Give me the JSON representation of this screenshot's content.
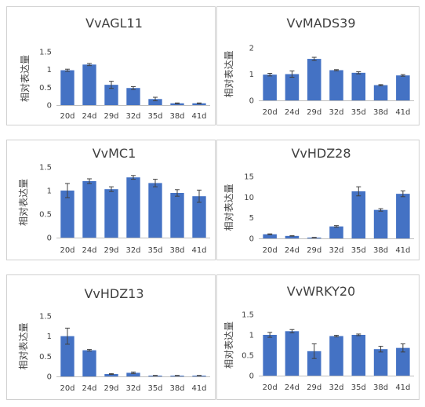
{
  "chart_data": [
    {
      "type": "bar",
      "title": "VvAGL11",
      "ylabel": "相对表达量",
      "categories": [
        "20d",
        "24d",
        "29d",
        "32d",
        "35d",
        "38d",
        "41d"
      ],
      "values": [
        0.98,
        1.14,
        0.57,
        0.48,
        0.17,
        0.05,
        0.05
      ],
      "errors": [
        0.03,
        0.03,
        0.1,
        0.04,
        0.05,
        0.01,
        0.01
      ],
      "ylim": [
        0,
        1.5
      ],
      "yticks": [
        0,
        0.5,
        1,
        1.5
      ],
      "ytick_labels": [
        "0",
        "0.5",
        "1",
        "1.5"
      ],
      "bar_color": "#4472c4",
      "grid": false
    },
    {
      "type": "bar",
      "title": "VvMADS39",
      "ylabel": "相对表达量",
      "categories": [
        "20d",
        "24d",
        "29d",
        "32d",
        "35d",
        "38d",
        "41d"
      ],
      "values": [
        0.98,
        1.0,
        1.58,
        1.15,
        1.05,
        0.58,
        0.95
      ],
      "errors": [
        0.05,
        0.12,
        0.06,
        0.02,
        0.04,
        0.02,
        0.03
      ],
      "ylim": [
        0,
        2
      ],
      "yticks": [
        0,
        1,
        2
      ],
      "ytick_labels": [
        "0",
        "1",
        "2"
      ],
      "bar_color": "#4472c4",
      "grid": false
    },
    {
      "type": "bar",
      "title": "VvMC1",
      "ylabel": "相对表达量",
      "categories": [
        "20d",
        "24d",
        "29d",
        "32d",
        "35d",
        "38d",
        "41d"
      ],
      "values": [
        1.0,
        1.2,
        1.03,
        1.28,
        1.16,
        0.95,
        0.88
      ],
      "errors": [
        0.15,
        0.05,
        0.05,
        0.04,
        0.08,
        0.07,
        0.13
      ],
      "ylim": [
        0,
        1.5
      ],
      "yticks": [
        0,
        0.5,
        1,
        1.5
      ],
      "ytick_labels": [
        "0",
        "0.5",
        "1",
        "1.5"
      ],
      "bar_color": "#4472c4",
      "grid": false
    },
    {
      "type": "bar",
      "title": "VvHDZ28",
      "ylabel": "相对表达量",
      "categories": [
        "20d",
        "24d",
        "29d",
        "32d",
        "35d",
        "38d",
        "41d"
      ],
      "values": [
        1.0,
        0.6,
        0.2,
        2.9,
        11.4,
        6.9,
        10.8
      ],
      "errors": [
        0.1,
        0.05,
        0.05,
        0.2,
        1.1,
        0.3,
        0.7
      ],
      "ylim": [
        0,
        15
      ],
      "yticks": [
        0,
        5,
        10,
        15
      ],
      "ytick_labels": [
        "0",
        "5",
        "10",
        "15"
      ],
      "bar_color": "#4472c4",
      "grid": false
    },
    {
      "type": "bar",
      "title": "VvHDZ13",
      "ylabel": "相对表达量",
      "categories": [
        "20d",
        "24d",
        "29d",
        "32d",
        "35d",
        "38d",
        "41d"
      ],
      "values": [
        1.0,
        0.65,
        0.06,
        0.09,
        0.02,
        0.02,
        0.02
      ],
      "errors": [
        0.2,
        0.02,
        0.01,
        0.02,
        0.005,
        0.005,
        0.005
      ],
      "ylim": [
        0,
        1.5
      ],
      "yticks": [
        0,
        0.5,
        1,
        1.5
      ],
      "ytick_labels": [
        "0",
        "0.5",
        "1",
        "1.5"
      ],
      "bar_color": "#4472c4",
      "grid": false
    },
    {
      "type": "bar",
      "title": "VvWRKY20",
      "ylabel": "相对表达量",
      "categories": [
        "20d",
        "24d",
        "29d",
        "32d",
        "35d",
        "38d",
        "41d"
      ],
      "values": [
        1.0,
        1.09,
        0.6,
        0.97,
        1.0,
        0.65,
        0.68
      ],
      "errors": [
        0.06,
        0.04,
        0.18,
        0.02,
        0.02,
        0.07,
        0.1
      ],
      "ylim": [
        0,
        1.5
      ],
      "yticks": [
        0,
        0.5,
        1,
        1.5
      ],
      "ytick_labels": [
        "0",
        "0.5",
        "1",
        "1.5"
      ],
      "bar_color": "#4472c4",
      "grid": false
    }
  ]
}
